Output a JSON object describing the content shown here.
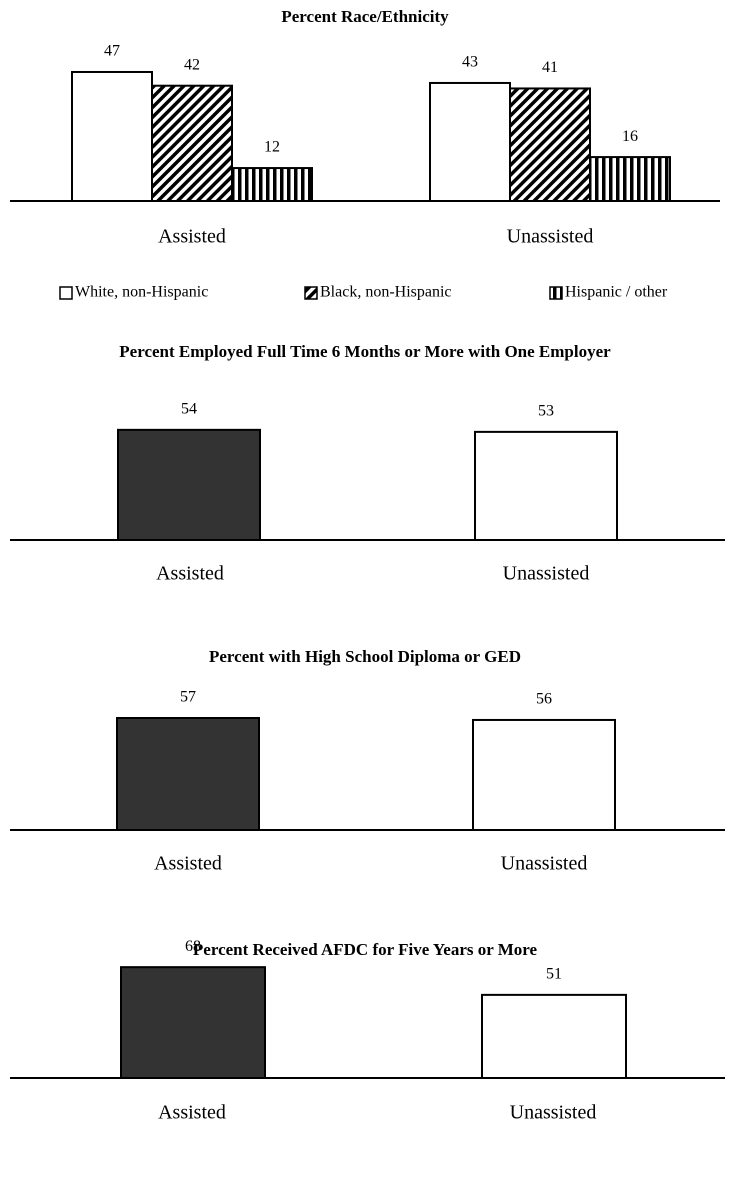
{
  "chart_data": [
    {
      "type": "bar",
      "title": "Percent Race/Ethnicity",
      "categories": [
        "Assisted",
        "Unassisted"
      ],
      "series": [
        {
          "name": "White, non-Hispanic",
          "color": "#ffffff",
          "hatch": "none",
          "values": [
            47,
            43
          ]
        },
        {
          "name": "Black, non-Hispanic",
          "color": "#000000",
          "hatch": "diagonal",
          "values": [
            42,
            41
          ]
        },
        {
          "name": "Hispanic / other",
          "color": "#000000",
          "hatch": "vertical",
          "values": [
            12,
            16
          ]
        }
      ],
      "legend": "bottom"
    },
    {
      "type": "bar",
      "title": "Percent Employed Full Time 6 Months or More with One Employer",
      "categories": [
        "Assisted",
        "Unassisted"
      ],
      "values": [
        54,
        53
      ],
      "colors": [
        "#333333",
        "#ffffff"
      ]
    },
    {
      "type": "bar",
      "title": "Percent with High School Diploma or GED",
      "categories": [
        "Assisted",
        "Unassisted"
      ],
      "values": [
        57,
        56
      ],
      "colors": [
        "#333333",
        "#ffffff"
      ]
    },
    {
      "type": "bar",
      "title": "Percent Received AFDC for Five Years or More",
      "categories": [
        "Assisted",
        "Unassisted"
      ],
      "values": [
        68,
        51
      ],
      "colors": [
        "#333333",
        "#ffffff"
      ]
    }
  ]
}
